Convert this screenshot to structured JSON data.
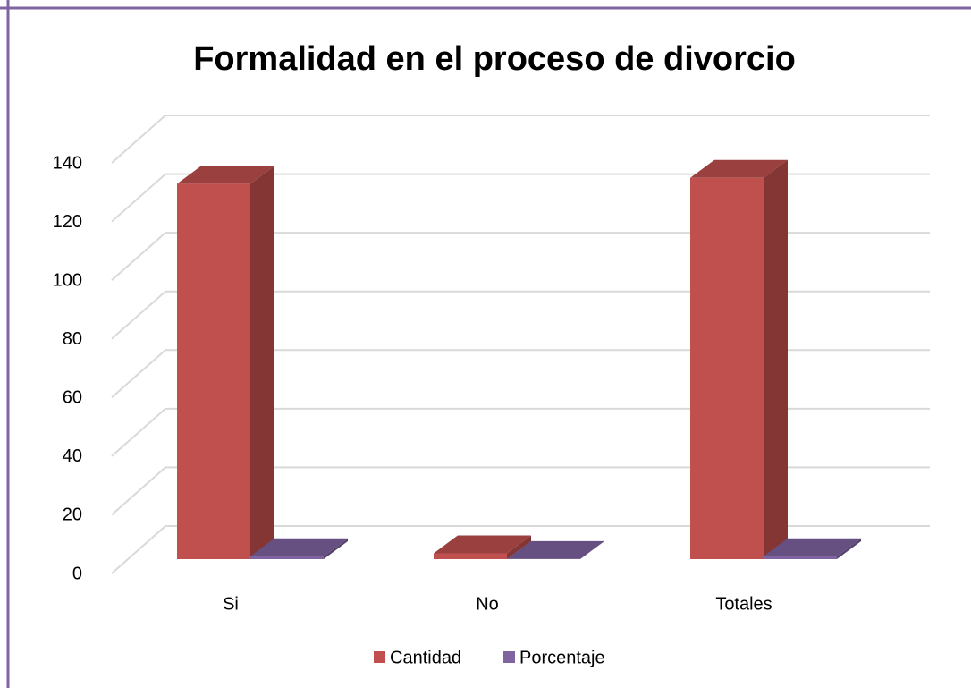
{
  "chart_data": {
    "type": "bar3d",
    "title": "Formalidad en el proceso de divorcio",
    "categories": [
      "Si",
      "No",
      "Totales"
    ],
    "series": [
      {
        "name": "Cantidad",
        "color": "#c0504d",
        "values": [
          128,
          2,
          130
        ]
      },
      {
        "name": "Porcentaje",
        "color": "#8064a2",
        "values": [
          0.98,
          0.02,
          1
        ]
      }
    ],
    "ylim": [
      0,
      140
    ],
    "yticks": [
      0,
      20,
      40,
      60,
      80,
      100,
      120,
      140
    ],
    "grid": true,
    "legend": "bottom"
  }
}
